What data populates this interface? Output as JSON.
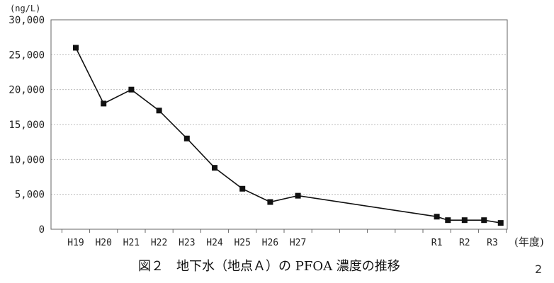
{
  "chart_data": {
    "type": "line",
    "title": "",
    "caption": "図２　地下水（地点Ａ）の PFOA 濃度の推移",
    "ylabel_unit": "(ng/L)",
    "xlabel_unit": "(年度)",
    "ylim": [
      0,
      30000
    ],
    "yticks": [
      0,
      5000,
      10000,
      15000,
      20000,
      25000,
      30000
    ],
    "ytick_labels": [
      "0",
      "5,000",
      "10,000",
      "15,000",
      "20,000",
      "25,000",
      "30,000"
    ],
    "xtick_labels": [
      "H19",
      "H20",
      "H21",
      "H22",
      "H23",
      "H24",
      "H25",
      "H26",
      "H27",
      "R1",
      "R2",
      "R3"
    ],
    "xtick_index": [
      0,
      1,
      2,
      3,
      4,
      5,
      6,
      7,
      8,
      13,
      14,
      15
    ],
    "grid": true,
    "marker": "square",
    "series": [
      {
        "x": [
          0,
          1,
          2,
          3,
          4,
          5,
          6,
          7,
          8,
          13,
          13.4,
          14,
          14.7,
          15.3
        ],
        "values": [
          26000,
          18000,
          20000,
          17000,
          13000,
          8800,
          5800,
          3900,
          4800,
          1800,
          1300,
          1300,
          1300,
          900
        ]
      }
    ]
  },
  "page_number": "2"
}
